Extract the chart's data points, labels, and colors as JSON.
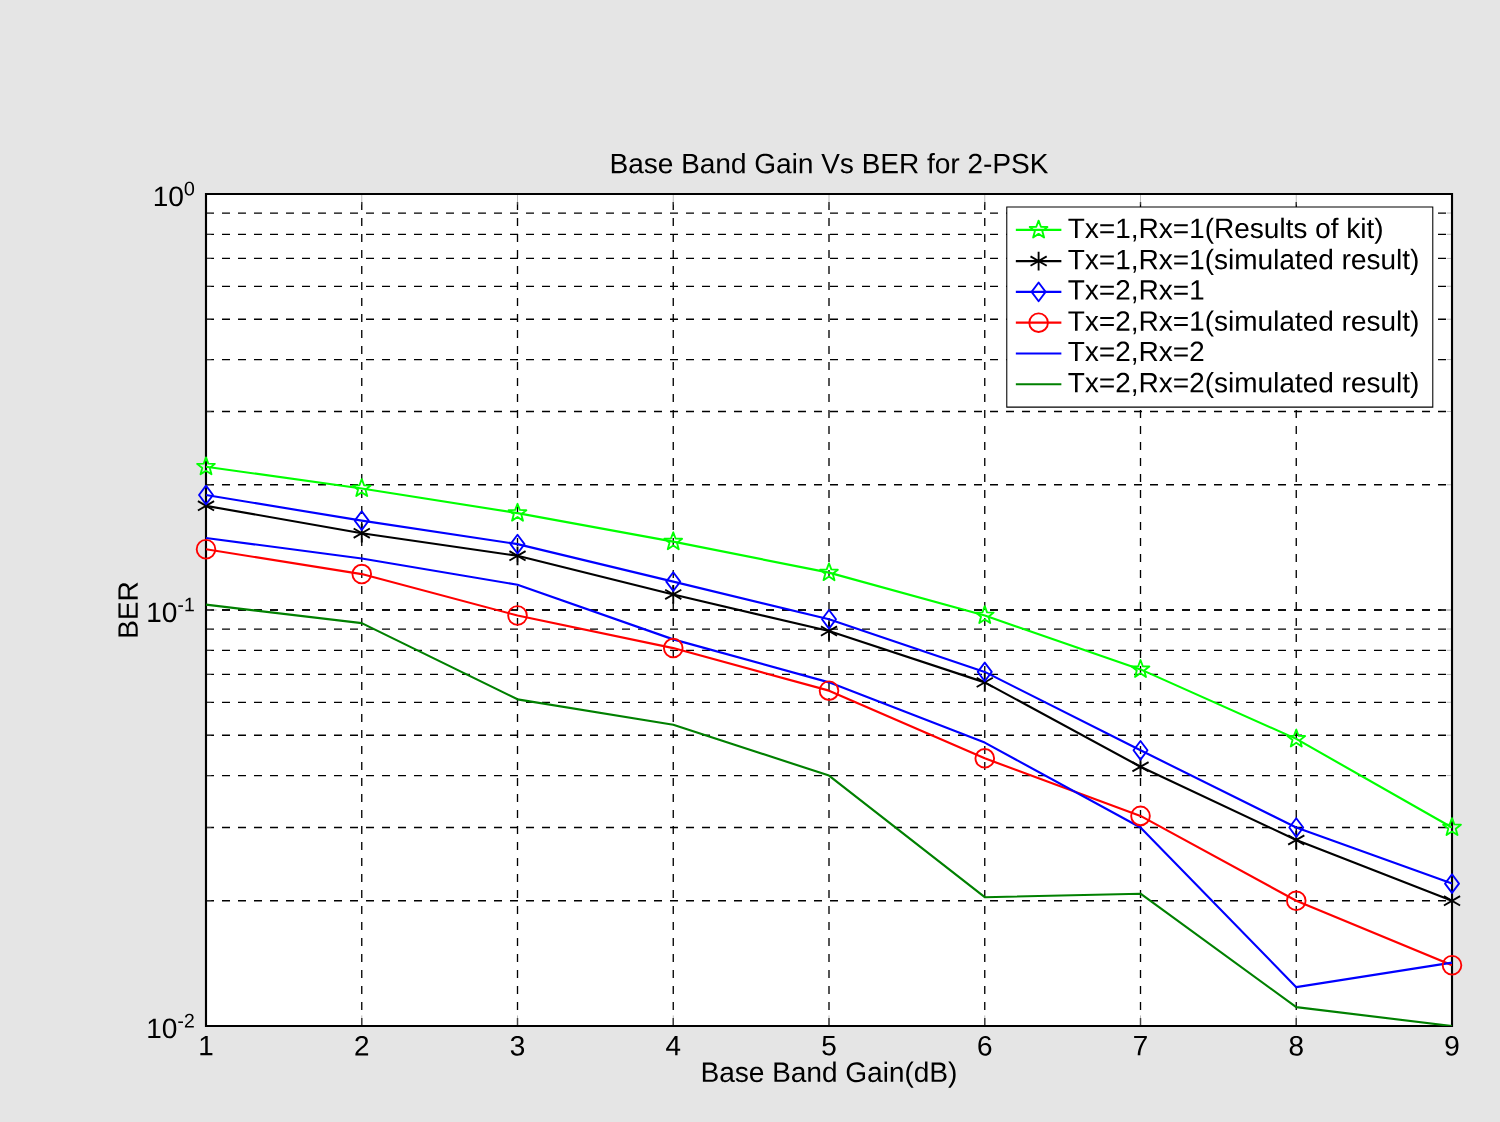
{
  "chart_data": {
    "type": "line",
    "title": "Base Band Gain Vs BER for 2-PSK",
    "xlabel": "Base Band Gain(dB)",
    "ylabel": "BER",
    "x": [
      1,
      2,
      3,
      4,
      5,
      6,
      7,
      8,
      9
    ],
    "xlim": [
      1,
      9
    ],
    "xticks": [
      1,
      2,
      3,
      4,
      5,
      6,
      7,
      8,
      9
    ],
    "ylim": [
      0.01,
      1
    ],
    "log": "y",
    "yticks": [
      {
        "value": 0.01,
        "label": "10$^{-2}$"
      },
      {
        "value": 0.1,
        "label": "10$^{-1}$"
      },
      {
        "value": 1,
        "label": "10$^{0}$"
      }
    ],
    "grid": true,
    "legend": "top right",
    "series": [
      {
        "name": "Tx=1,Rx=1(Results of kit)",
        "color": "#00ff00",
        "marker": "star",
        "values": [
          0.221,
          0.196,
          0.171,
          0.146,
          0.123,
          0.097,
          0.072,
          0.049,
          0.03
        ]
      },
      {
        "name": "Tx=1,Rx=1(simulated result)",
        "color": "#000000",
        "marker": "cross",
        "values": [
          0.178,
          0.153,
          0.135,
          0.109,
          0.089,
          0.067,
          0.042,
          0.028,
          0.02
        ]
      },
      {
        "name": "Tx=2,Rx=1",
        "color": "#0000ff",
        "marker": "diamond",
        "values": [
          0.189,
          0.164,
          0.144,
          0.117,
          0.095,
          0.071,
          0.046,
          0.03,
          0.022
        ]
      },
      {
        "name": "Tx=2,Rx=1(simulated result)",
        "color": "#ff0000",
        "marker": "circle",
        "values": [
          0.14,
          0.122,
          0.097,
          0.081,
          0.064,
          0.044,
          0.032,
          0.02,
          0.014
        ]
      },
      {
        "name": "Tx=2,Rx=2",
        "color": "#0000ff",
        "marker": "none",
        "values": [
          0.149,
          0.133,
          0.115,
          0.085,
          0.067,
          0.048,
          0.03,
          0.0124,
          0.0142
        ]
      },
      {
        "name": "Tx=2,Rx=2(simulated result)",
        "color": "#008000",
        "marker": "none",
        "values": [
          0.103,
          0.093,
          0.061,
          0.053,
          0.04,
          0.0204,
          0.0208,
          0.0111,
          0.01
        ]
      }
    ]
  }
}
